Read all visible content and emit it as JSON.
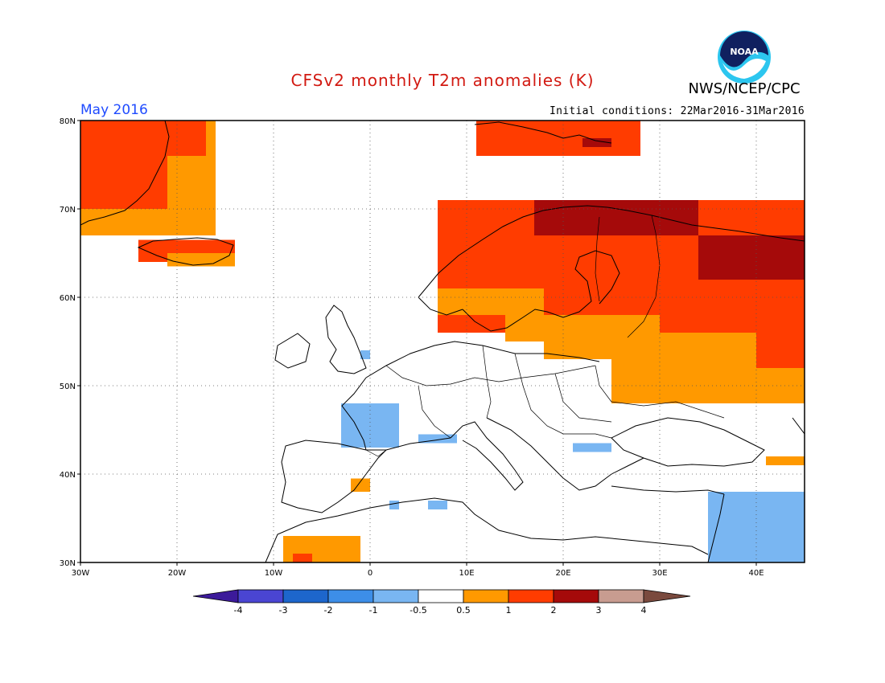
{
  "header": {
    "title": "CFSv2 monthly T2m anomalies (K)",
    "month": "May 2016",
    "initial_conditions": "Initial conditions: 22Mar2016-31Mar2016",
    "agency": "NWS/NCEP/CPC",
    "logo_text": "NOAA"
  },
  "map": {
    "region": "Europe",
    "lon_range": [
      -30,
      45
    ],
    "lat_range": [
      30,
      80
    ],
    "lon_ticks": [
      {
        "value": -30,
        "label": "30W"
      },
      {
        "value": -20,
        "label": "20W"
      },
      {
        "value": -10,
        "label": "10W"
      },
      {
        "value": 0,
        "label": "0"
      },
      {
        "value": 10,
        "label": "10E"
      },
      {
        "value": 20,
        "label": "20E"
      },
      {
        "value": 30,
        "label": "30E"
      },
      {
        "value": 40,
        "label": "40E"
      }
    ],
    "lat_ticks": [
      {
        "value": 30,
        "label": "30N"
      },
      {
        "value": 40,
        "label": "40N"
      },
      {
        "value": 50,
        "label": "50N"
      },
      {
        "value": 60,
        "label": "60N"
      },
      {
        "value": 70,
        "label": "70N"
      },
      {
        "value": 80,
        "label": "80N"
      }
    ],
    "colors": {
      "lt_-3": "#3c1a9a",
      "-3_-2": "#4a45d2",
      "-2_-1": "#1d66cc",
      "-1_-0.5": "#3d8ee8",
      "-0.5_0": "#79b6f2",
      "0.5_1": "#ff9900",
      "1_2": "#ff3c00",
      "2_3": "#a50a0a",
      "3_4": "#c89c90",
      "gt_4": "#7a4a3e"
    },
    "anomaly_regions": [
      {
        "category": "0.5_1",
        "lon": [
          -30,
          -16
        ],
        "lat": [
          67,
          80
        ]
      },
      {
        "category": "1_2",
        "lon": [
          -30,
          -21
        ],
        "lat": [
          70,
          80
        ]
      },
      {
        "category": "1_2",
        "lon": [
          -21,
          -17
        ],
        "lat": [
          76,
          80
        ]
      },
      {
        "category": "1_2",
        "lon": [
          -24,
          -14
        ],
        "lat": [
          64,
          66.5
        ]
      },
      {
        "category": "0.5_1",
        "lon": [
          -21,
          -14
        ],
        "lat": [
          63.5,
          65
        ]
      },
      {
        "category": "1_2",
        "lon": [
          11,
          28
        ],
        "lat": [
          76,
          80
        ]
      },
      {
        "category": "2_3",
        "lon": [
          22,
          25
        ],
        "lat": [
          77,
          78
        ]
      },
      {
        "category": "1_2",
        "lon": [
          7,
          45
        ],
        "lat": [
          56,
          71
        ]
      },
      {
        "category": "2_3",
        "lon": [
          17,
          34
        ],
        "lat": [
          67,
          71
        ]
      },
      {
        "category": "2_3",
        "lon": [
          34,
          45
        ],
        "lat": [
          61,
          67
        ]
      },
      {
        "category": "0.5_1",
        "lon": [
          7,
          14
        ],
        "lat": [
          58,
          61
        ]
      },
      {
        "category": "0.5_1",
        "lon": [
          14,
          18
        ],
        "lat": [
          55,
          61
        ]
      },
      {
        "category": "1_2",
        "lon": [
          28,
          45
        ],
        "lat": [
          53,
          62
        ]
      },
      {
        "category": "0.5_1",
        "lon": [
          18,
          30
        ],
        "lat": [
          53,
          58
        ]
      },
      {
        "category": "0.5_1",
        "lon": [
          25,
          45
        ],
        "lat": [
          48,
          56
        ]
      },
      {
        "category": "1_2",
        "lon": [
          40,
          45
        ],
        "lat": [
          52,
          56
        ]
      },
      {
        "category": "0.5_1",
        "lon": [
          -2,
          0
        ],
        "lat": [
          38,
          39.5
        ]
      },
      {
        "category": "0.5_1",
        "lon": [
          -9,
          -1
        ],
        "lat": [
          30,
          33
        ]
      },
      {
        "category": "1_2",
        "lon": [
          -8,
          -6
        ],
        "lat": [
          30,
          31
        ]
      },
      {
        "category": "0.5_1",
        "lon": [
          41,
          45
        ],
        "lat": [
          41,
          42
        ]
      },
      {
        "category": "-0.5_0",
        "lon": [
          -3,
          3
        ],
        "lat": [
          43,
          48
        ]
      },
      {
        "category": "-0.5_0",
        "lon": [
          -1,
          0
        ],
        "lat": [
          53,
          54
        ]
      },
      {
        "category": "-0.5_0",
        "lon": [
          5,
          9
        ],
        "lat": [
          43.5,
          44.5
        ]
      },
      {
        "category": "-0.5_0",
        "lon": [
          21,
          25
        ],
        "lat": [
          42.5,
          43.5
        ]
      },
      {
        "category": "-0.5_0",
        "lon": [
          2,
          3
        ],
        "lat": [
          36,
          37
        ]
      },
      {
        "category": "-0.5_0",
        "lon": [
          6,
          8
        ],
        "lat": [
          36,
          37
        ]
      },
      {
        "category": "-0.5_0",
        "lon": [
          35,
          45
        ],
        "lat": [
          30,
          38
        ]
      }
    ]
  },
  "colorbar": {
    "labels": [
      "-4",
      "-3",
      "-2",
      "-1",
      "-0.5",
      "0.5",
      "1",
      "2",
      "3",
      "4"
    ]
  }
}
